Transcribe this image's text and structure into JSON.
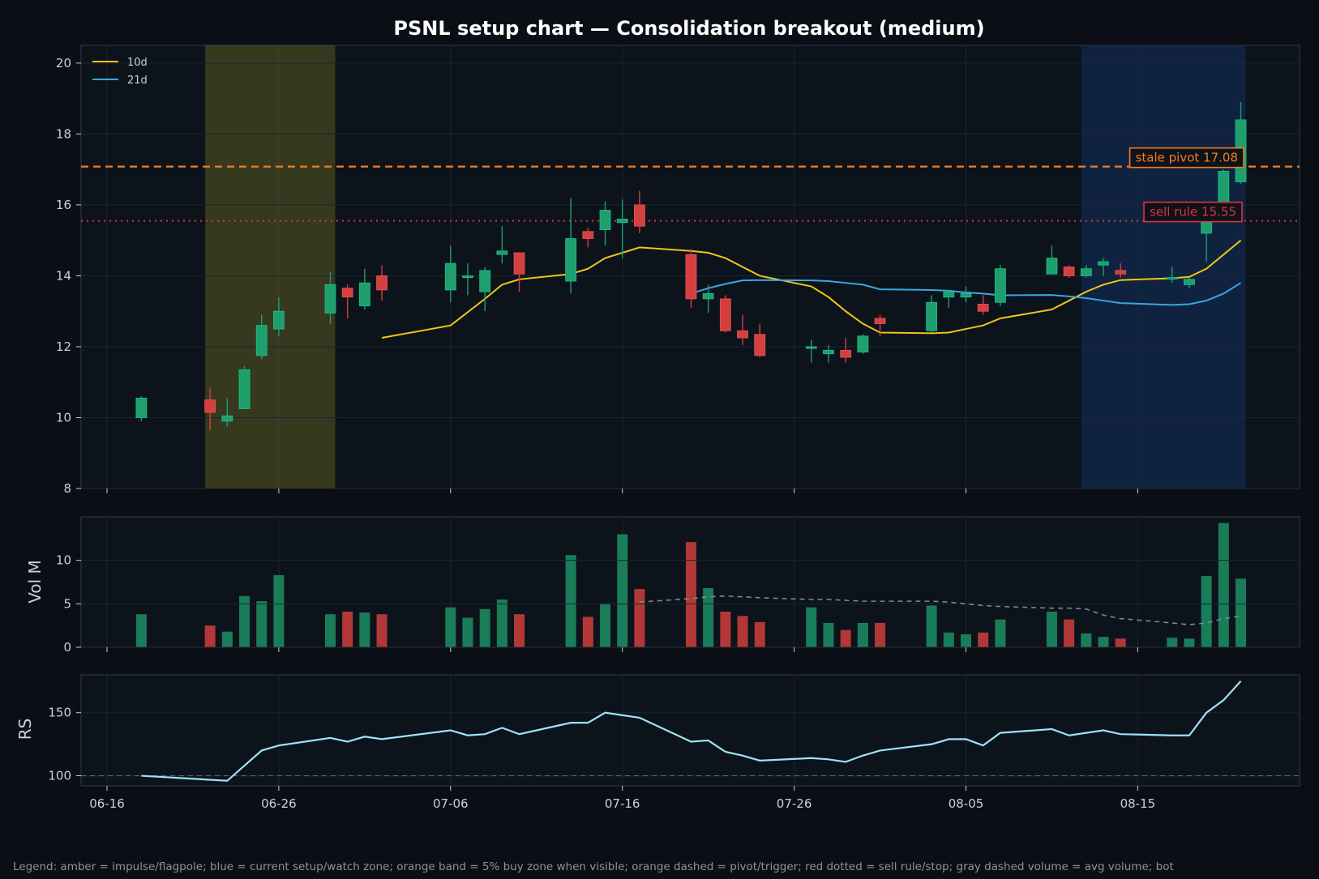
{
  "chart_data": {
    "type": "candlestick",
    "title": "PSNL setup chart — Consolidation breakout (medium)",
    "x_ticks": [
      "06-16",
      "06-26",
      "07-06",
      "07-16",
      "07-26",
      "08-05",
      "08-15"
    ],
    "y_ticks": [
      8,
      10,
      12,
      14,
      16,
      18,
      20
    ],
    "ylim": [
      8,
      20.5
    ],
    "vol_ylabel": "Vol M",
    "vol_ticks": [
      0,
      5,
      10
    ],
    "vol_ylim": [
      0,
      15
    ],
    "rs_ylabel": "RS",
    "rs_ticks": [
      100,
      150
    ],
    "rs_ylim": [
      92,
      180
    ],
    "rs_baseline": 100,
    "legend": [
      {
        "name": "10d",
        "color": "#f0c419"
      },
      {
        "name": "21d",
        "color": "#3ba7e0"
      }
    ],
    "zones": [
      {
        "name": "impulse",
        "start": "06-22",
        "end": "06-29",
        "color": "#5a5a20"
      },
      {
        "name": "setup",
        "start": "08-12",
        "end": "08-21",
        "color": "#10284a"
      }
    ],
    "pivot": {
      "label": "stale pivot 17.08",
      "value": 17.08,
      "color": "#f57c1f"
    },
    "sell_rule": {
      "label": "sell rule 15.55",
      "value": 15.55,
      "color": "#e0313d"
    },
    "candles": [
      {
        "d": "06-18",
        "o": 10.0,
        "h": 10.6,
        "l": 9.9,
        "c": 10.55,
        "v": 3.8
      },
      {
        "d": "06-22",
        "o": 10.5,
        "h": 10.85,
        "l": 9.65,
        "c": 10.15,
        "v": 2.5
      },
      {
        "d": "06-23",
        "o": 9.9,
        "h": 10.55,
        "l": 9.75,
        "c": 10.05,
        "v": 1.8
      },
      {
        "d": "06-24",
        "o": 10.25,
        "h": 11.45,
        "l": 10.25,
        "c": 11.35,
        "v": 5.9
      },
      {
        "d": "06-25",
        "o": 11.75,
        "h": 12.9,
        "l": 11.65,
        "c": 12.6,
        "v": 5.3
      },
      {
        "d": "06-26",
        "o": 12.5,
        "h": 13.4,
        "l": 12.3,
        "c": 13.0,
        "v": 8.3
      },
      {
        "d": "06-29",
        "o": 12.95,
        "h": 14.1,
        "l": 12.65,
        "c": 13.75,
        "v": 3.8
      },
      {
        "d": "06-30",
        "o": 13.65,
        "h": 13.75,
        "l": 12.8,
        "c": 13.4,
        "v": 4.1
      },
      {
        "d": "07-01",
        "o": 13.15,
        "h": 14.2,
        "l": 13.05,
        "c": 13.8,
        "v": 4.0
      },
      {
        "d": "07-02",
        "o": 14.0,
        "h": 14.3,
        "l": 13.3,
        "c": 13.6,
        "v": 3.8
      },
      {
        "d": "07-06",
        "o": 13.6,
        "h": 14.85,
        "l": 13.25,
        "c": 14.35,
        "v": 4.6
      },
      {
        "d": "07-07",
        "o": 13.95,
        "h": 14.35,
        "l": 13.45,
        "c": 14.0,
        "v": 3.4
      },
      {
        "d": "07-08",
        "o": 13.55,
        "h": 14.25,
        "l": 13.0,
        "c": 14.15,
        "v": 4.4
      },
      {
        "d": "07-09",
        "o": 14.6,
        "h": 15.4,
        "l": 14.35,
        "c": 14.7,
        "v": 5.5
      },
      {
        "d": "07-10",
        "o": 14.65,
        "h": 14.65,
        "l": 13.55,
        "c": 14.05,
        "v": 3.8
      },
      {
        "d": "07-13",
        "o": 13.85,
        "h": 16.2,
        "l": 13.5,
        "c": 15.05,
        "v": 10.6
      },
      {
        "d": "07-14",
        "o": 15.25,
        "h": 15.35,
        "l": 14.8,
        "c": 15.05,
        "v": 3.5
      },
      {
        "d": "07-15",
        "o": 15.3,
        "h": 16.1,
        "l": 14.85,
        "c": 15.85,
        "v": 5.0
      },
      {
        "d": "07-16",
        "o": 15.5,
        "h": 16.15,
        "l": 14.5,
        "c": 15.6,
        "v": 13.0
      },
      {
        "d": "07-17",
        "o": 16.0,
        "h": 16.4,
        "l": 15.2,
        "c": 15.4,
        "v": 6.7
      },
      {
        "d": "07-20",
        "o": 14.6,
        "h": 14.75,
        "l": 13.1,
        "c": 13.35,
        "v": 12.1
      },
      {
        "d": "07-21",
        "o": 13.35,
        "h": 13.75,
        "l": 12.95,
        "c": 13.5,
        "v": 6.8
      },
      {
        "d": "07-22",
        "o": 13.35,
        "h": 13.45,
        "l": 12.4,
        "c": 12.45,
        "v": 4.1
      },
      {
        "d": "07-23",
        "o": 12.45,
        "h": 12.9,
        "l": 12.05,
        "c": 12.25,
        "v": 3.6
      },
      {
        "d": "07-24",
        "o": 12.35,
        "h": 12.65,
        "l": 11.7,
        "c": 11.75,
        "v": 2.9
      },
      {
        "d": "07-27",
        "o": 11.95,
        "h": 12.2,
        "l": 11.55,
        "c": 12.0,
        "v": 4.6
      },
      {
        "d": "07-28",
        "o": 11.8,
        "h": 12.05,
        "l": 11.55,
        "c": 11.9,
        "v": 2.8
      },
      {
        "d": "07-29",
        "o": 11.9,
        "h": 12.25,
        "l": 11.55,
        "c": 11.7,
        "v": 2.0
      },
      {
        "d": "07-30",
        "o": 11.85,
        "h": 12.35,
        "l": 11.8,
        "c": 12.3,
        "v": 2.8
      },
      {
        "d": "07-31",
        "o": 12.8,
        "h": 12.9,
        "l": 12.3,
        "c": 12.65,
        "v": 2.8
      },
      {
        "d": "08-03",
        "o": 12.45,
        "h": 13.45,
        "l": 12.4,
        "c": 13.25,
        "v": 4.8
      },
      {
        "d": "08-04",
        "o": 13.4,
        "h": 13.6,
        "l": 13.1,
        "c": 13.55,
        "v": 1.7
      },
      {
        "d": "08-05",
        "o": 13.4,
        "h": 13.7,
        "l": 13.25,
        "c": 13.5,
        "v": 1.5
      },
      {
        "d": "08-06",
        "o": 13.2,
        "h": 13.45,
        "l": 12.9,
        "c": 13.0,
        "v": 1.7
      },
      {
        "d": "08-07",
        "o": 13.25,
        "h": 14.3,
        "l": 13.15,
        "c": 14.2,
        "v": 3.2
      },
      {
        "d": "08-10",
        "o": 14.05,
        "h": 14.85,
        "l": 14.05,
        "c": 14.5,
        "v": 4.1
      },
      {
        "d": "08-11",
        "o": 14.25,
        "h": 14.3,
        "l": 13.95,
        "c": 14.0,
        "v": 3.2
      },
      {
        "d": "08-12",
        "o": 14.0,
        "h": 14.3,
        "l": 13.95,
        "c": 14.2,
        "v": 1.6
      },
      {
        "d": "08-13",
        "o": 14.3,
        "h": 14.5,
        "l": 14.0,
        "c": 14.4,
        "v": 1.2
      },
      {
        "d": "08-14",
        "o": 14.15,
        "h": 14.35,
        "l": 13.95,
        "c": 14.05,
        "v": 1.0
      },
      {
        "d": "08-17",
        "o": 13.95,
        "h": 14.25,
        "l": 13.8,
        "c": 13.95,
        "v": 1.1
      },
      {
        "d": "08-18",
        "o": 13.75,
        "h": 13.95,
        "l": 13.65,
        "c": 13.9,
        "v": 1.0
      },
      {
        "d": "08-19",
        "o": 15.2,
        "h": 15.55,
        "l": 14.4,
        "c": 15.5,
        "v": 8.2
      },
      {
        "d": "08-20",
        "o": 15.9,
        "h": 17.0,
        "l": 15.9,
        "c": 16.95,
        "v": 14.3
      },
      {
        "d": "08-21",
        "o": 16.65,
        "h": 18.9,
        "l": 16.6,
        "c": 18.4,
        "v": 7.9
      }
    ],
    "ma10": [
      [
        "07-02",
        12.25
      ],
      [
        "07-06",
        12.6
      ],
      [
        "07-08",
        13.35
      ],
      [
        "07-09",
        13.75
      ],
      [
        "07-10",
        13.9
      ],
      [
        "07-13",
        14.05
      ],
      [
        "07-14",
        14.2
      ],
      [
        "07-15",
        14.5
      ],
      [
        "07-16",
        14.65
      ],
      [
        "07-17",
        14.8
      ],
      [
        "07-20",
        14.7
      ],
      [
        "07-21",
        14.65
      ],
      [
        "07-22",
        14.5
      ],
      [
        "07-23",
        14.25
      ],
      [
        "07-24",
        14.0
      ],
      [
        "07-27",
        13.7
      ],
      [
        "07-28",
        13.4
      ],
      [
        "07-29",
        13.0
      ],
      [
        "07-30",
        12.65
      ],
      [
        "07-31",
        12.4
      ],
      [
        "08-03",
        12.38
      ],
      [
        "08-04",
        12.4
      ],
      [
        "08-05",
        12.5
      ],
      [
        "08-06",
        12.6
      ],
      [
        "08-07",
        12.8
      ],
      [
        "08-10",
        13.05
      ],
      [
        "08-11",
        13.3
      ],
      [
        "08-12",
        13.55
      ],
      [
        "08-13",
        13.75
      ],
      [
        "08-14",
        13.88
      ],
      [
        "08-17",
        13.93
      ],
      [
        "08-18",
        13.97
      ],
      [
        "08-19",
        14.2
      ],
      [
        "08-20",
        14.6
      ],
      [
        "08-21",
        15.0
      ]
    ],
    "ma21": [
      [
        "07-20",
        13.5
      ],
      [
        "07-21",
        13.65
      ],
      [
        "07-22",
        13.77
      ],
      [
        "07-23",
        13.87
      ],
      [
        "07-24",
        13.88
      ],
      [
        "07-27",
        13.87
      ],
      [
        "07-28",
        13.85
      ],
      [
        "07-29",
        13.8
      ],
      [
        "07-30",
        13.75
      ],
      [
        "07-31",
        13.62
      ],
      [
        "08-03",
        13.6
      ],
      [
        "08-04",
        13.58
      ],
      [
        "08-05",
        13.53
      ],
      [
        "08-06",
        13.5
      ],
      [
        "08-07",
        13.45
      ],
      [
        "08-10",
        13.46
      ],
      [
        "08-11",
        13.42
      ],
      [
        "08-12",
        13.37
      ],
      [
        "08-13",
        13.3
      ],
      [
        "08-14",
        13.23
      ],
      [
        "08-17",
        13.18
      ],
      [
        "08-18",
        13.2
      ],
      [
        "08-19",
        13.3
      ],
      [
        "08-20",
        13.5
      ],
      [
        "08-21",
        13.8
      ]
    ],
    "vol_avg": [
      [
        "07-17",
        5.2
      ],
      [
        "07-20",
        5.6
      ],
      [
        "07-21",
        5.8
      ],
      [
        "07-22",
        5.9
      ],
      [
        "07-23",
        5.8
      ],
      [
        "07-24",
        5.7
      ],
      [
        "07-27",
        5.5
      ],
      [
        "07-28",
        5.5
      ],
      [
        "07-29",
        5.4
      ],
      [
        "07-30",
        5.3
      ],
      [
        "07-31",
        5.3
      ],
      [
        "08-03",
        5.3
      ],
      [
        "08-04",
        5.2
      ],
      [
        "08-05",
        5.0
      ],
      [
        "08-06",
        4.8
      ],
      [
        "08-07",
        4.7
      ],
      [
        "08-10",
        4.5
      ],
      [
        "08-11",
        4.5
      ],
      [
        "08-12",
        4.4
      ],
      [
        "08-13",
        3.7
      ],
      [
        "08-14",
        3.3
      ],
      [
        "08-17",
        2.8
      ],
      [
        "08-18",
        2.6
      ],
      [
        "08-19",
        2.8
      ],
      [
        "08-20",
        3.3
      ],
      [
        "08-21",
        3.6
      ]
    ],
    "rs": [
      [
        "06-18",
        100
      ],
      [
        "06-23",
        96
      ],
      [
        "06-24",
        108
      ],
      [
        "06-25",
        120
      ],
      [
        "06-26",
        124
      ],
      [
        "06-29",
        130
      ],
      [
        "06-30",
        127
      ],
      [
        "07-01",
        131
      ],
      [
        "07-02",
        129
      ],
      [
        "07-06",
        136
      ],
      [
        "07-07",
        132
      ],
      [
        "07-08",
        133
      ],
      [
        "07-09",
        138
      ],
      [
        "07-10",
        133
      ],
      [
        "07-13",
        142
      ],
      [
        "07-14",
        142
      ],
      [
        "07-15",
        150
      ],
      [
        "07-17",
        146
      ],
      [
        "07-20",
        127
      ],
      [
        "07-21",
        128
      ],
      [
        "07-22",
        119
      ],
      [
        "07-23",
        116
      ],
      [
        "07-24",
        112
      ],
      [
        "07-27",
        114
      ],
      [
        "07-28",
        113
      ],
      [
        "07-29",
        111
      ],
      [
        "07-30",
        116
      ],
      [
        "07-31",
        120
      ],
      [
        "08-03",
        125
      ],
      [
        "08-04",
        129
      ],
      [
        "08-05",
        129
      ],
      [
        "08-06",
        124
      ],
      [
        "08-07",
        134
      ],
      [
        "08-10",
        137
      ],
      [
        "08-11",
        132
      ],
      [
        "08-13",
        136
      ],
      [
        "08-14",
        133
      ],
      [
        "08-17",
        132
      ],
      [
        "08-18",
        132
      ],
      [
        "08-19",
        150
      ],
      [
        "08-20",
        160
      ],
      [
        "08-21",
        175
      ]
    ],
    "up_color": "#1f9e6e",
    "down_color": "#d43f3f",
    "footnote": "Legend: amber = impulse/flagpole; blue = current setup/watch zone; orange band = 5% buy zone when visible; orange dashed = pivot/trigger; red dotted = sell rule/stop; gray dashed volume = avg volume; bot"
  }
}
